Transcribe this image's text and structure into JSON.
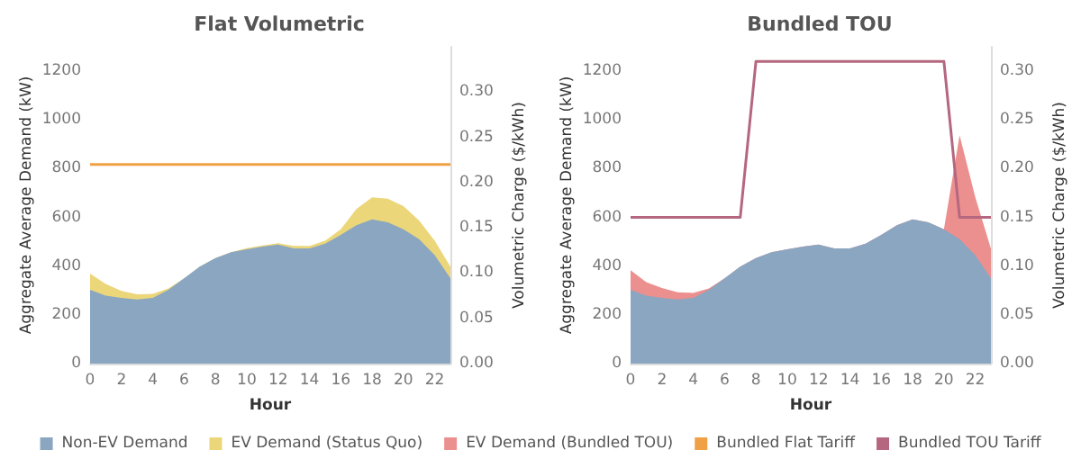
{
  "chart_data": [
    {
      "type": "area",
      "title": "Flat Volumetric",
      "xlabel": "Hour",
      "ylabel": "Aggregate Average Demand (kW)",
      "y2label": "Volumetric Charge ($/kWh)",
      "stacked": true,
      "legend": "bottom",
      "grid": false,
      "x": [
        0,
        1,
        2,
        3,
        4,
        5,
        6,
        7,
        8,
        9,
        10,
        11,
        12,
        13,
        14,
        15,
        16,
        17,
        18,
        19,
        20,
        21,
        22,
        23
      ],
      "xlim": [
        0,
        23
      ],
      "xticks": [
        0,
        2,
        4,
        6,
        8,
        10,
        12,
        14,
        16,
        18,
        20,
        22
      ],
      "ylim": [
        0,
        1300
      ],
      "yticks": [
        0,
        200,
        400,
        600,
        800,
        1000,
        1200
      ],
      "y2lim": [
        0,
        0.35
      ],
      "y2ticks": [
        {
          "value": 0,
          "label": "0.00"
        },
        {
          "value": 0.05,
          "label": "0.05"
        },
        {
          "value": 0.1,
          "label": "0.10"
        },
        {
          "value": 0.15,
          "label": "0.15"
        },
        {
          "value": 0.2,
          "label": "0.20"
        },
        {
          "value": 0.25,
          "label": "0.25"
        },
        {
          "value": 0.3,
          "label": "0.30"
        }
      ],
      "series": [
        {
          "name": "Non-EV Demand",
          "color": "#8aa6c1",
          "values": [
            303,
            279,
            270,
            263,
            270,
            303,
            350,
            398,
            433,
            457,
            469,
            480,
            488,
            473,
            473,
            492,
            528,
            568,
            592,
            580,
            551,
            511,
            445,
            350
          ]
        },
        {
          "name": "EV Demand (Status Quo)",
          "color": "#ecd67a",
          "values": [
            66,
            48,
            28,
            21,
            16,
            5,
            0,
            0,
            0,
            0,
            5,
            5,
            6,
            10,
            10,
            12,
            23,
            66,
            90,
            97,
            95,
            76,
            59,
            48
          ]
        },
        {
          "name": "Bundled Flat Tariff",
          "type": "line",
          "axis": "y2",
          "color": "#f0a045",
          "values": [
            0.22,
            0.22,
            0.22,
            0.22,
            0.22,
            0.22,
            0.22,
            0.22,
            0.22,
            0.22,
            0.22,
            0.22,
            0.22,
            0.22,
            0.22,
            0.22,
            0.22,
            0.22,
            0.22,
            0.22,
            0.22,
            0.22,
            0.22,
            0.22
          ]
        }
      ]
    },
    {
      "type": "area",
      "title": "Bundled TOU",
      "xlabel": "Hour",
      "ylabel": "Aggregate Average Demand (kW)",
      "y2label": "Volumetric Charge ($/kWh)",
      "stacked": true,
      "legend": "bottom",
      "grid": false,
      "x": [
        0,
        1,
        2,
        3,
        4,
        5,
        6,
        7,
        8,
        9,
        10,
        11,
        12,
        13,
        14,
        15,
        16,
        17,
        18,
        19,
        20,
        21,
        22,
        23
      ],
      "xlim": [
        0,
        23
      ],
      "xticks": [
        0,
        2,
        4,
        6,
        8,
        10,
        12,
        14,
        16,
        18,
        20,
        22
      ],
      "ylim": [
        0,
        1300
      ],
      "yticks": [
        0,
        200,
        400,
        600,
        800,
        1000,
        1200
      ],
      "y2lim": [
        0,
        0.325
      ],
      "y2ticks": [
        {
          "value": 0,
          "label": "0.00"
        },
        {
          "value": 0.05,
          "label": "0.05"
        },
        {
          "value": 0.1,
          "label": "0.10"
        },
        {
          "value": 0.15,
          "label": "0.15"
        },
        {
          "value": 0.2,
          "label": "0.20"
        },
        {
          "value": 0.25,
          "label": "0.25"
        },
        {
          "value": 0.3,
          "label": "0.30"
        }
      ],
      "series": [
        {
          "name": "Non-EV Demand",
          "color": "#8aa6c1",
          "values": [
            303,
            279,
            270,
            263,
            270,
            303,
            350,
            398,
            433,
            457,
            469,
            480,
            488,
            473,
            473,
            492,
            528,
            568,
            592,
            580,
            551,
            511,
            445,
            350
          ]
        },
        {
          "name": "EV Demand (Bundled TOU)",
          "color": "#ec8f8f",
          "values": [
            80,
            55,
            40,
            30,
            20,
            5,
            0,
            0,
            0,
            0,
            0,
            0,
            0,
            0,
            0,
            0,
            0,
            0,
            0,
            0,
            0,
            426,
            238,
            122
          ]
        },
        {
          "name": "Bundled TOU Tariff",
          "type": "line",
          "axis": "y2",
          "color": "#b5677f",
          "values": [
            0.15,
            0.15,
            0.15,
            0.15,
            0.15,
            0.15,
            0.15,
            0.15,
            0.31,
            0.31,
            0.31,
            0.31,
            0.31,
            0.31,
            0.31,
            0.31,
            0.31,
            0.31,
            0.31,
            0.31,
            0.31,
            0.15,
            0.15,
            0.15
          ]
        }
      ]
    }
  ]
}
